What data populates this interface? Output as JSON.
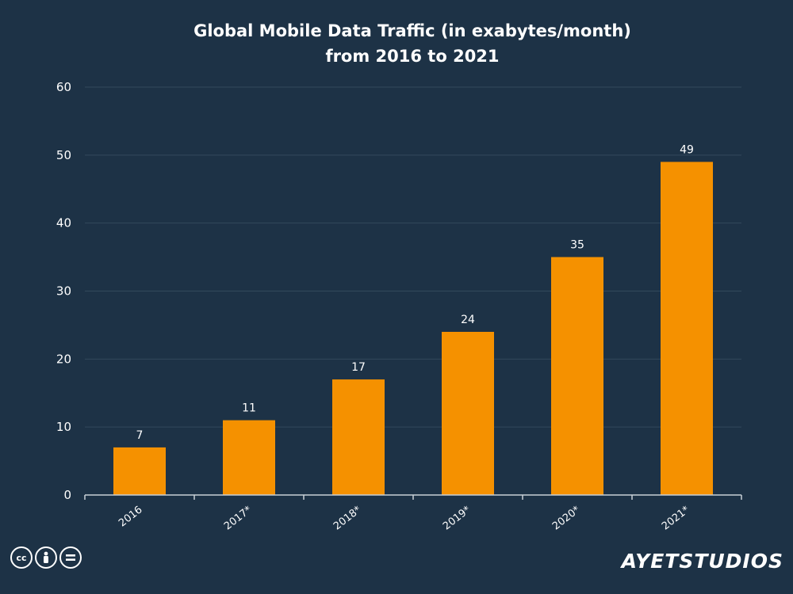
{
  "chart_data": {
    "type": "bar",
    "title_line1": "Global Mobile Data Traffic (in exabytes/month)",
    "title_line2": "from 2016 to 2021",
    "categories": [
      "2016",
      "2017*",
      "2018*",
      "2019*",
      "2020*",
      "2021*"
    ],
    "values": [
      7,
      11,
      17,
      24,
      35,
      49
    ],
    "ylim": [
      0,
      60
    ],
    "yticks": [
      0,
      10,
      20,
      30,
      40,
      50,
      60
    ],
    "grid": true,
    "bar_color": "#f59100",
    "background": "#1d3246"
  },
  "footer": {
    "license_badge": "cc-by-nd",
    "logo_text": "AYETSTUDIOS"
  }
}
